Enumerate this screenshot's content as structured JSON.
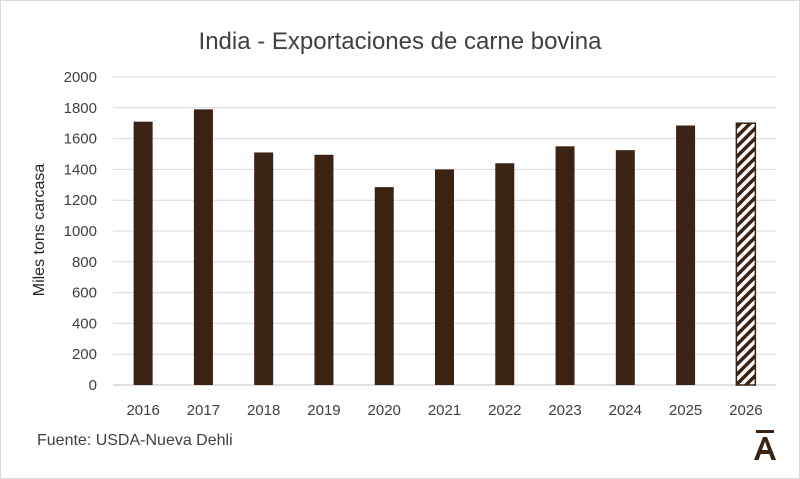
{
  "chart_data": {
    "type": "bar",
    "title": "India - Exportaciones de carne bovina",
    "ylabel": "Miles tons carcasa",
    "xlabel": "",
    "categories": [
      "2016",
      "2017",
      "2018",
      "2019",
      "2020",
      "2021",
      "2022",
      "2023",
      "2024",
      "2025",
      "2026"
    ],
    "values": [
      1710,
      1790,
      1510,
      1495,
      1285,
      1400,
      1440,
      1550,
      1525,
      1685,
      1700
    ],
    "projected": [
      false,
      false,
      false,
      false,
      false,
      false,
      false,
      false,
      false,
      false,
      true
    ],
    "ylim": [
      0,
      2000
    ],
    "yticks": [
      0,
      200,
      400,
      600,
      800,
      1000,
      1200,
      1400,
      1600,
      1800,
      2000
    ],
    "grid": true,
    "bar_color": "#3b2314"
  },
  "footer": {
    "source": "Fuente: USDA-Nueva Dehli",
    "logo_text": "Ā"
  }
}
